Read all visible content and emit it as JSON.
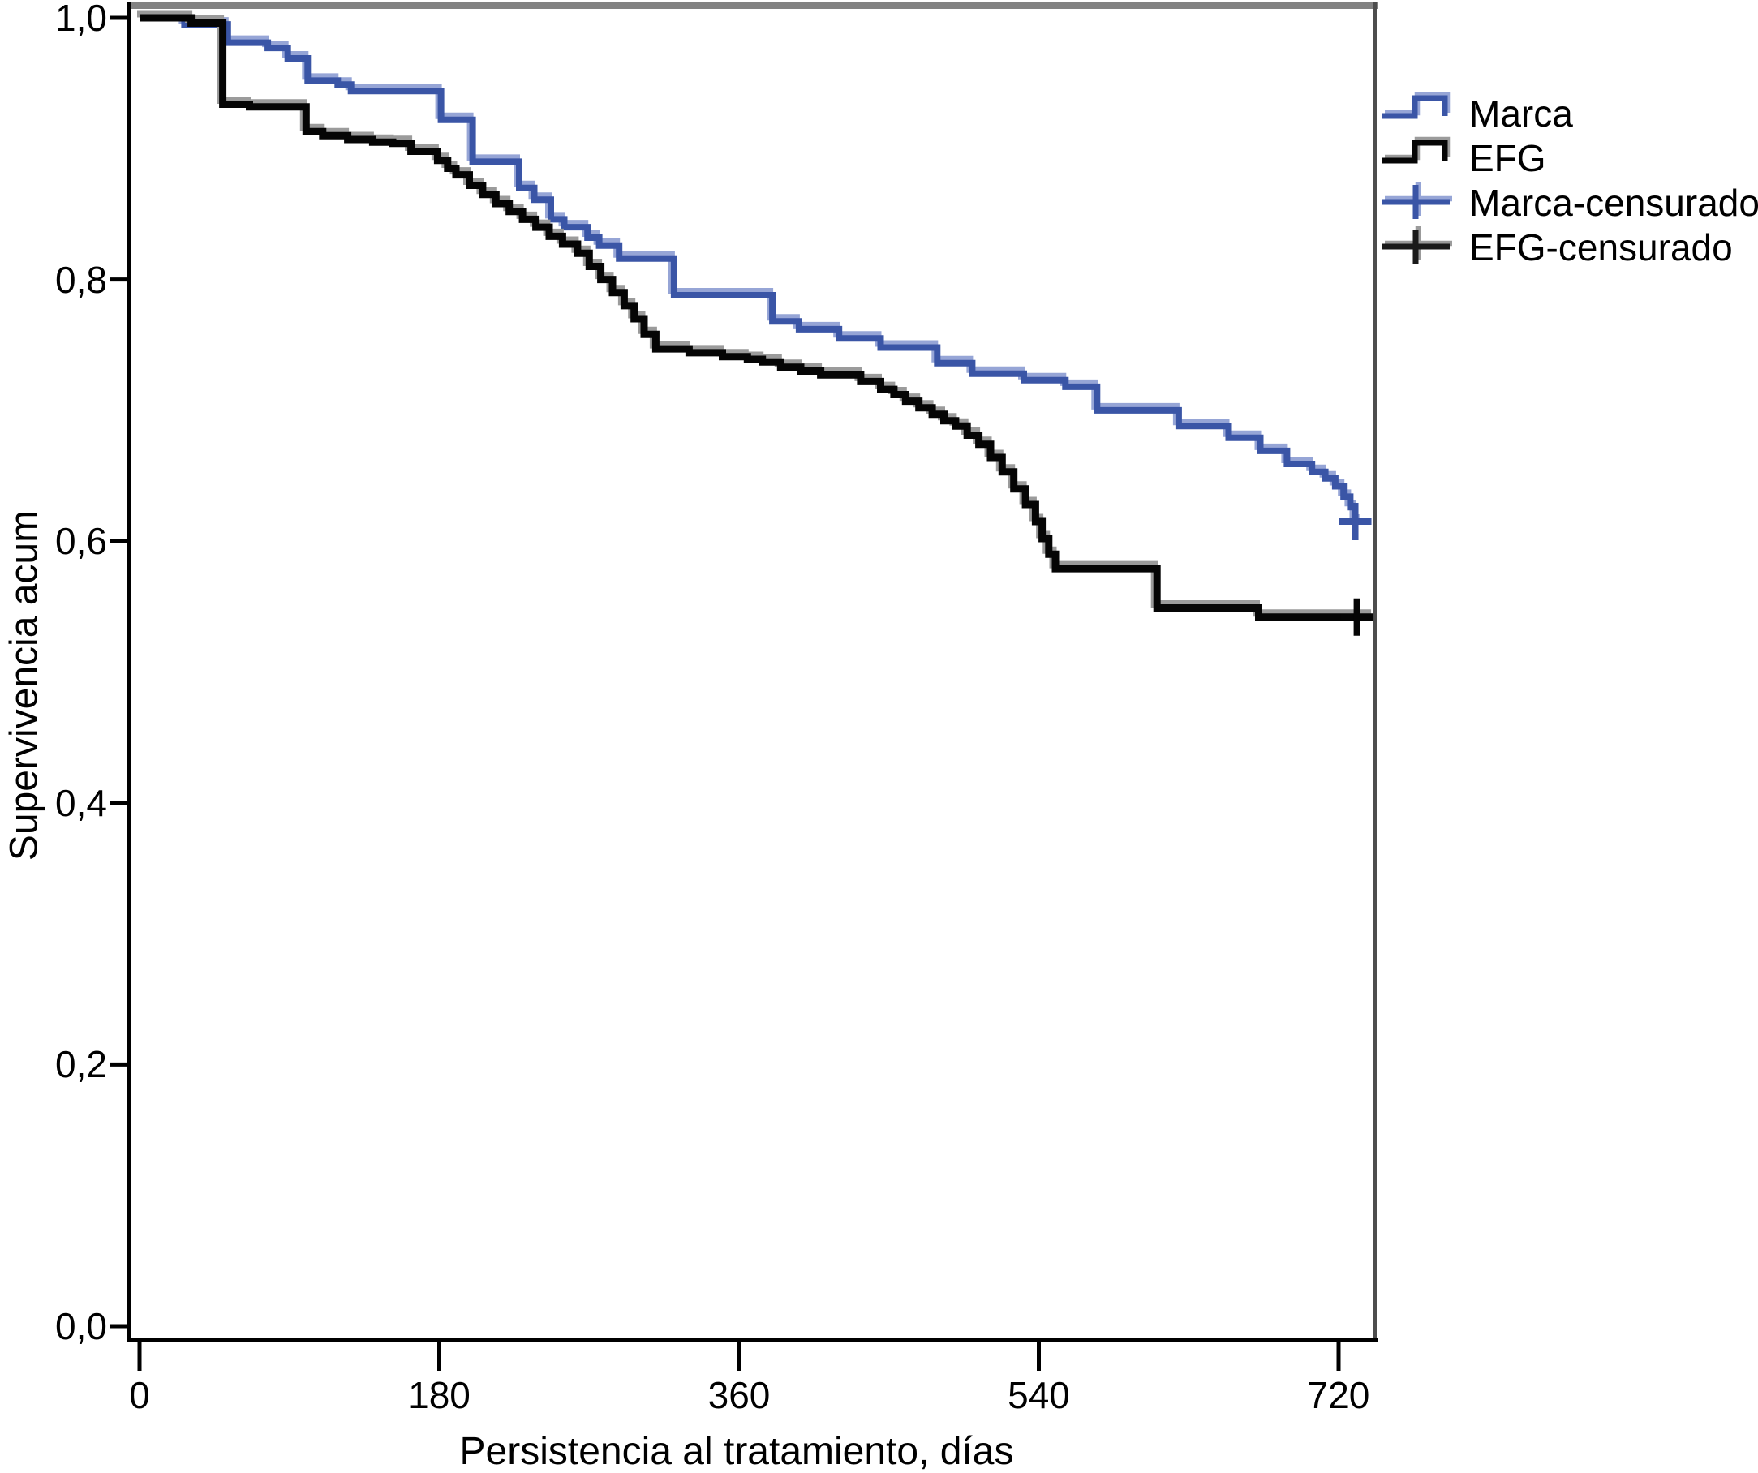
{
  "figure": {
    "background": "#ffffff",
    "frame": {
      "top_color": "#828282",
      "right_color": "#4d4d4d",
      "axis_color": "#000000"
    }
  },
  "chart_data": {
    "type": "line",
    "subtype": "kaplan-meier-step-survival",
    "title": "",
    "xlabel": "Persistencia al tratamiento, días",
    "ylabel": "Supervivencia acum",
    "xlim": [
      0,
      745
    ],
    "ylim": [
      0.0,
      1.0
    ],
    "grid": false,
    "legend_position": "right",
    "x_ticks": {
      "values": [
        0,
        180,
        360,
        540,
        720
      ],
      "labels": [
        "0",
        "180",
        "360",
        "540",
        "720"
      ]
    },
    "y_ticks": {
      "values": [
        1.0,
        0.8,
        0.6,
        0.4,
        0.2,
        0.0
      ],
      "labels": [
        "1,0",
        "0,8",
        "0,6",
        "0,4",
        "0,2",
        "0,0"
      ]
    },
    "series": [
      {
        "name": "Marca",
        "color": "#3A55A6",
        "halo_color": "#96A5D6",
        "stroke_width": 8,
        "end_day": 734,
        "censor_marks": [
          {
            "day": 730,
            "value": 0.615
          }
        ],
        "steps": [
          [
            0,
            1.0
          ],
          [
            27,
            0.995
          ],
          [
            53,
            0.981
          ],
          [
            77,
            0.977
          ],
          [
            89,
            0.969
          ],
          [
            101,
            0.952
          ],
          [
            119,
            0.949
          ],
          [
            127,
            0.944
          ],
          [
            181,
            0.922
          ],
          [
            200,
            0.89
          ],
          [
            228,
            0.87
          ],
          [
            237,
            0.861
          ],
          [
            247,
            0.846
          ],
          [
            255,
            0.84
          ],
          [
            269,
            0.832
          ],
          [
            276,
            0.826
          ],
          [
            288,
            0.816
          ],
          [
            321,
            0.788
          ],
          [
            380,
            0.768
          ],
          [
            396,
            0.762
          ],
          [
            420,
            0.755
          ],
          [
            445,
            0.748
          ],
          [
            479,
            0.736
          ],
          [
            500,
            0.728
          ],
          [
            531,
            0.723
          ],
          [
            556,
            0.718
          ],
          [
            575,
            0.7
          ],
          [
            624,
            0.688
          ],
          [
            654,
            0.679
          ],
          [
            673,
            0.669
          ],
          [
            689,
            0.659
          ],
          [
            704,
            0.653
          ],
          [
            712,
            0.648
          ],
          [
            718,
            0.642
          ],
          [
            723,
            0.634
          ],
          [
            727,
            0.626
          ],
          [
            730,
            0.615
          ]
        ]
      },
      {
        "name": "EFG",
        "color": "#050505",
        "halo_color": "#9b9b9b",
        "stroke_width": 9,
        "end_day": 741,
        "censor_marks": [
          {
            "day": 731,
            "value": 0.542
          }
        ],
        "steps": [
          [
            0,
            1.0
          ],
          [
            31,
            0.996
          ],
          [
            50,
            0.934
          ],
          [
            66,
            0.932
          ],
          [
            100,
            0.913
          ],
          [
            110,
            0.91
          ],
          [
            125,
            0.907
          ],
          [
            140,
            0.905
          ],
          [
            152,
            0.904
          ],
          [
            163,
            0.898
          ],
          [
            179,
            0.891
          ],
          [
            185,
            0.885
          ],
          [
            190,
            0.88
          ],
          [
            198,
            0.872
          ],
          [
            206,
            0.865
          ],
          [
            214,
            0.858
          ],
          [
            222,
            0.852
          ],
          [
            230,
            0.846
          ],
          [
            238,
            0.84
          ],
          [
            246,
            0.833
          ],
          [
            254,
            0.827
          ],
          [
            263,
            0.82
          ],
          [
            270,
            0.81
          ],
          [
            277,
            0.8
          ],
          [
            284,
            0.79
          ],
          [
            291,
            0.78
          ],
          [
            297,
            0.77
          ],
          [
            303,
            0.758
          ],
          [
            310,
            0.747
          ],
          [
            330,
            0.744
          ],
          [
            350,
            0.741
          ],
          [
            365,
            0.739
          ],
          [
            374,
            0.737
          ],
          [
            385,
            0.733
          ],
          [
            397,
            0.73
          ],
          [
            409,
            0.727
          ],
          [
            433,
            0.722
          ],
          [
            445,
            0.716
          ],
          [
            453,
            0.712
          ],
          [
            460,
            0.707
          ],
          [
            468,
            0.702
          ],
          [
            476,
            0.697
          ],
          [
            483,
            0.692
          ],
          [
            490,
            0.688
          ],
          [
            497,
            0.681
          ],
          [
            504,
            0.674
          ],
          [
            511,
            0.664
          ],
          [
            518,
            0.653
          ],
          [
            525,
            0.64
          ],
          [
            532,
            0.628
          ],
          [
            538,
            0.615
          ],
          [
            542,
            0.602
          ],
          [
            546,
            0.59
          ],
          [
            550,
            0.579
          ],
          [
            611,
            0.549
          ],
          [
            672,
            0.542
          ]
        ]
      }
    ],
    "legend": [
      {
        "label": "Marca",
        "marker": "step",
        "color": "#3A55A6",
        "halo_color": "#96A5D6"
      },
      {
        "label": "EFG",
        "marker": "step",
        "color": "#050505",
        "halo_color": "#9b9b9b"
      },
      {
        "label": "Marca-censurado",
        "marker": "plus",
        "color": "#3A55A6",
        "halo_color": "#96A5D6"
      },
      {
        "label": "EFG-censurado",
        "marker": "plus",
        "color": "#1a1a1a",
        "halo_color": "#9b9b9b"
      }
    ]
  }
}
